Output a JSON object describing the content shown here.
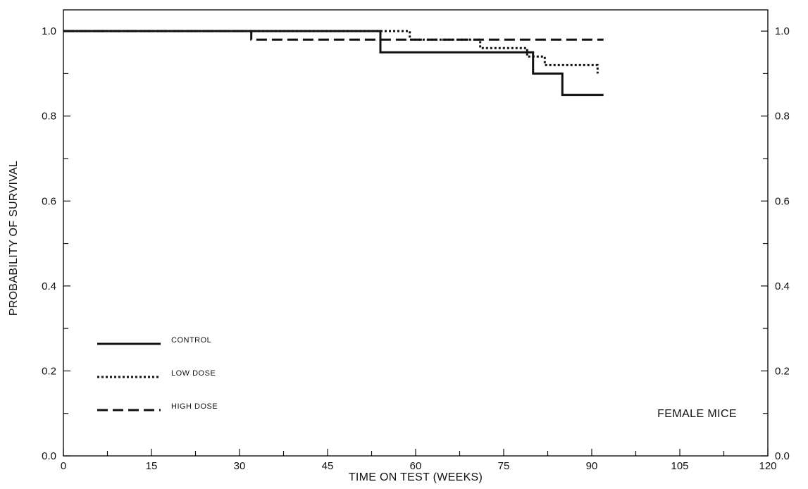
{
  "chart_data": {
    "type": "line",
    "title": "",
    "xlabel": "TIME ON TEST (WEEKS)",
    "ylabel": "PROBABILITY OF SURVIVAL",
    "xlim": [
      0,
      120
    ],
    "ylim": [
      0.0,
      1.05
    ],
    "x_ticks": [
      0,
      15,
      30,
      45,
      60,
      75,
      90,
      105,
      120
    ],
    "y_ticks": [
      0.0,
      0.2,
      0.4,
      0.6,
      0.8,
      1.0
    ],
    "x_tick_labels": [
      "0",
      "15",
      "30",
      "45",
      "60",
      "75",
      "90",
      "105",
      "120"
    ],
    "y_tick_labels": [
      "0.0",
      "0.2",
      "0.4",
      "0.6",
      "0.8",
      "1.0"
    ],
    "right_y_tick_labels": [
      "0.0",
      "0.2",
      "0.4",
      "0.6",
      "0.8",
      "1.0"
    ],
    "grid": false,
    "step": true,
    "legend_position": "bottom-left",
    "annotation": "FEMALE MICE",
    "series": [
      {
        "name": "CONTROL",
        "style": "solid",
        "points": [
          [
            0,
            1.0
          ],
          [
            54,
            1.0
          ],
          [
            54,
            0.95
          ],
          [
            80,
            0.95
          ],
          [
            80,
            0.9
          ],
          [
            85,
            0.9
          ],
          [
            85,
            0.85
          ],
          [
            92,
            0.85
          ]
        ]
      },
      {
        "name": "LOW DOSE",
        "style": "dotted",
        "points": [
          [
            0,
            1.0
          ],
          [
            59,
            1.0
          ],
          [
            59,
            0.98
          ],
          [
            71,
            0.98
          ],
          [
            71,
            0.96
          ],
          [
            79,
            0.96
          ],
          [
            79,
            0.94
          ],
          [
            82,
            0.94
          ],
          [
            82,
            0.92
          ],
          [
            91,
            0.92
          ],
          [
            91,
            0.9
          ]
        ]
      },
      {
        "name": "HIGH DOSE",
        "style": "dashed",
        "points": [
          [
            0,
            1.0
          ],
          [
            32,
            1.0
          ],
          [
            32,
            0.98
          ],
          [
            92,
            0.98
          ]
        ]
      }
    ]
  }
}
